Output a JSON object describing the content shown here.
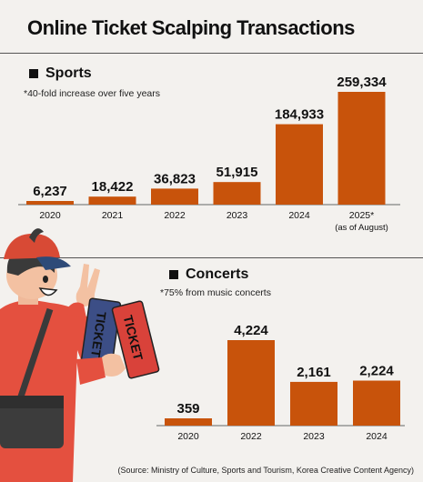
{
  "header": {
    "title": "Online Ticket Scalping Transactions"
  },
  "colors": {
    "bar": "#c8530b",
    "background": "#f3f1ee"
  },
  "chart_data": [
    {
      "type": "bar",
      "title": "Sports",
      "annotation": "*40-fold increase over five years",
      "categories": [
        "2020",
        "2021",
        "2022",
        "2023",
        "2024",
        "2025*"
      ],
      "category_subtitles": [
        "",
        "",
        "",
        "",
        "",
        "(as of August)"
      ],
      "values": [
        6237,
        18422,
        36823,
        51915,
        184933,
        259334
      ],
      "value_labels": [
        "6,237",
        "18,422",
        "36,823",
        "51,915",
        "184,933",
        "259,334"
      ],
      "ylim": [
        0,
        259334
      ],
      "grid": false,
      "legend": "none"
    },
    {
      "type": "bar",
      "title": "Concerts",
      "annotation": "*75% from music concerts",
      "categories": [
        "2020",
        "2022",
        "2023",
        "2024"
      ],
      "values": [
        359,
        4224,
        2161,
        2224
      ],
      "value_labels": [
        "359",
        "4,224",
        "2,161",
        "2,224"
      ],
      "ylim": [
        0,
        4224
      ],
      "grid": false,
      "legend": "none"
    }
  ],
  "footer": {
    "source": "(Source: Ministry of Culture, Sports and Tourism, Korea Creative Content Agency)"
  },
  "icons": {
    "illustration": "person-holding-tickets-illustration",
    "ticket_text": "TICKET"
  }
}
